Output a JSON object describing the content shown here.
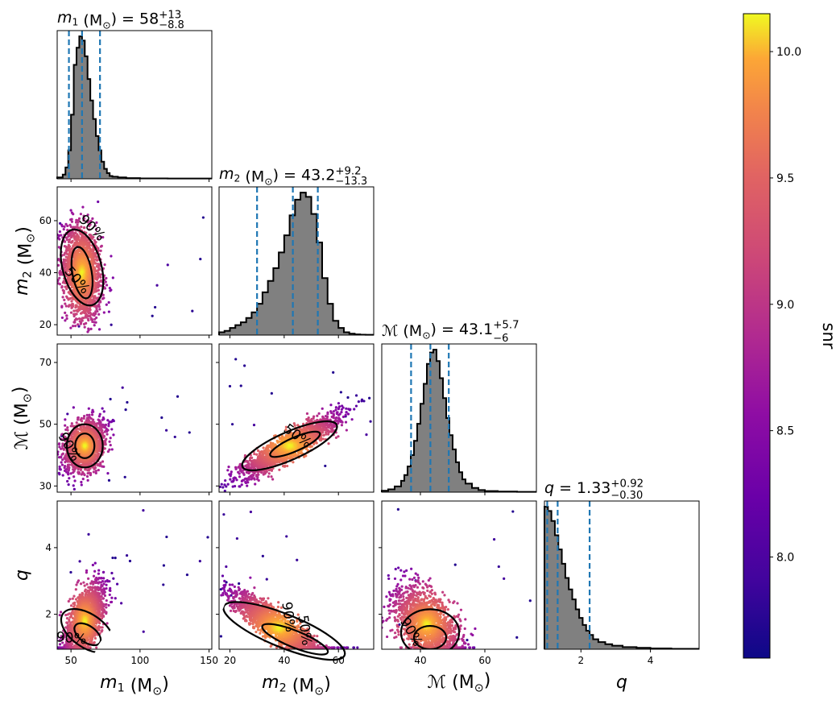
{
  "chart_data": {
    "type": "scatter",
    "subtype": "corner-plot",
    "colorbar": {
      "label": "snr",
      "min": 7.6,
      "max": 10.15,
      "ticks": [
        "8.0",
        "8.5",
        "9.0",
        "9.5",
        "10.0"
      ],
      "colormap": "plasma"
    },
    "parameters": [
      {
        "key": "m1",
        "label": "m",
        "sub": "1",
        "unit": " (M",
        "unit_sub": "⊙",
        "unit_close": ")",
        "title_prefix": " = ",
        "median": "58",
        "plus": "+13",
        "minus": "−8.8",
        "lo": 48.5,
        "med": 58,
        "hi": 71,
        "range": [
          40,
          152
        ],
        "ticks": [
          "50",
          "100",
          "150"
        ]
      },
      {
        "key": "m2",
        "label": "m",
        "sub": "2",
        "unit": " (M",
        "unit_sub": "⊙",
        "unit_close": ")",
        "title_prefix": " = ",
        "median": "43.2",
        "plus": "+9.2",
        "minus": "−13.3",
        "lo": 30,
        "med": 43.2,
        "hi": 52.4,
        "range": [
          16,
          73
        ],
        "ticks": [
          "20",
          "40",
          "60"
        ]
      },
      {
        "key": "mc",
        "label": "ℳ",
        "sub": "",
        "unit": " (M",
        "unit_sub": "⊙",
        "unit_close": ")",
        "title_prefix": " = ",
        "median": "43.1",
        "plus": "+5.7",
        "minus": "−6",
        "lo": 37.1,
        "med": 43.1,
        "hi": 48.8,
        "range": [
          28,
          76
        ],
        "ticks": [
          "40",
          "60"
        ],
        "ylabel_ticks": [
          "30",
          "50",
          "70"
        ]
      },
      {
        "key": "q",
        "label": "q",
        "sub": "",
        "unit": "",
        "unit_sub": "",
        "unit_close": "",
        "title_prefix": " = ",
        "median": "1.33",
        "plus": "+0.92",
        "minus": "−0.30",
        "lo": 1.03,
        "med": 1.33,
        "hi": 2.25,
        "range": [
          0.95,
          5.4
        ],
        "ticks": [
          "2",
          "4"
        ]
      }
    ],
    "ylabel_ticks": {
      "m2": [
        "20",
        "40",
        "60"
      ],
      "mc": [
        "30",
        "50",
        "70"
      ],
      "q": [
        "2",
        "4"
      ]
    },
    "contour_labels": [
      {
        "panel": "m2_m1",
        "labels": [
          "90%",
          "50%"
        ]
      },
      {
        "panel": "mc_m1",
        "labels": [
          "90%"
        ]
      },
      {
        "panel": "mc_m2",
        "labels": [
          "50%"
        ]
      },
      {
        "panel": "q_m1",
        "labels": [
          "90%"
        ]
      },
      {
        "panel": "q_m2",
        "labels": [
          "90%",
          "50%"
        ]
      },
      {
        "panel": "q_mc",
        "labels": [
          "90%"
        ]
      }
    ],
    "histograms": {
      "m1": {
        "x": [
          40,
          44,
          46,
          48,
          50,
          52,
          54,
          56,
          58,
          60,
          62,
          64,
          66,
          68,
          70,
          72,
          74,
          76,
          78,
          80,
          84,
          90,
          100,
          120,
          152
        ],
        "y": [
          0.01,
          0.03,
          0.08,
          0.2,
          0.45,
          0.8,
          0.92,
          1.0,
          0.97,
          0.86,
          0.7,
          0.55,
          0.42,
          0.3,
          0.2,
          0.12,
          0.07,
          0.04,
          0.02,
          0.015,
          0.01,
          0.005,
          0.003,
          0.002,
          0.001
        ]
      },
      "m2": {
        "x": [
          16,
          18,
          20,
          22,
          24,
          26,
          28,
          30,
          32,
          34,
          36,
          38,
          40,
          42,
          44,
          46,
          48,
          50,
          52,
          54,
          56,
          58,
          60,
          62,
          64,
          66,
          68,
          70,
          73
        ],
        "y": [
          0.02,
          0.03,
          0.05,
          0.07,
          0.09,
          0.12,
          0.16,
          0.22,
          0.3,
          0.38,
          0.47,
          0.58,
          0.7,
          0.84,
          0.95,
          1.0,
          0.97,
          0.85,
          0.65,
          0.4,
          0.22,
          0.1,
          0.05,
          0.02,
          0.01,
          0.005,
          0.003,
          0.002,
          0.001
        ]
      },
      "mc": {
        "x": [
          28,
          30,
          32,
          34,
          35,
          36,
          37,
          38,
          39,
          40,
          41,
          42,
          43,
          44,
          45,
          46,
          47,
          48,
          49,
          50,
          51,
          52,
          53,
          54,
          56,
          58,
          60,
          64,
          70,
          76
        ],
        "y": [
          0.01,
          0.02,
          0.04,
          0.08,
          0.12,
          0.18,
          0.26,
          0.36,
          0.48,
          0.62,
          0.76,
          0.9,
          0.98,
          1.0,
          0.92,
          0.8,
          0.66,
          0.52,
          0.4,
          0.3,
          0.21,
          0.14,
          0.09,
          0.06,
          0.03,
          0.015,
          0.008,
          0.004,
          0.002,
          0.001
        ]
      },
      "q": {
        "x": [
          0.95,
          1.05,
          1.15,
          1.25,
          1.35,
          1.45,
          1.55,
          1.65,
          1.75,
          1.85,
          1.95,
          2.05,
          2.15,
          2.25,
          2.35,
          2.5,
          2.7,
          2.9,
          3.2,
          3.6,
          4.0,
          4.6,
          5.4
        ],
        "y": [
          1.0,
          0.97,
          0.9,
          0.8,
          0.7,
          0.6,
          0.5,
          0.42,
          0.35,
          0.28,
          0.22,
          0.17,
          0.13,
          0.1,
          0.07,
          0.05,
          0.035,
          0.025,
          0.015,
          0.01,
          0.006,
          0.003,
          0.001
        ]
      }
    },
    "scatter_samples": [
      {
        "panel": "m2_m1",
        "center": [
          58,
          40
        ],
        "spread": [
          7,
          9
        ],
        "corr": -0.2,
        "n": 1800
      },
      {
        "panel": "mc_m1",
        "center": [
          60,
          43
        ],
        "spread": [
          7,
          4
        ],
        "corr": 0.3,
        "n": 1800
      },
      {
        "panel": "mc_m2",
        "center": [
          42,
          43
        ],
        "spread": [
          9,
          5
        ],
        "corr": 0.9,
        "n": 1800
      },
      {
        "panel": "q_m1",
        "center": [
          60,
          1.8
        ],
        "spread": [
          7,
          0.55
        ],
        "corr": 0.6,
        "n": 1800
      },
      {
        "panel": "q_m2",
        "center": [
          38,
          1.6
        ],
        "spread": [
          9,
          0.55
        ],
        "corr": -0.9,
        "n": 1800
      },
      {
        "panel": "q_mc",
        "center": [
          42,
          1.7
        ],
        "spread": [
          5,
          0.55
        ],
        "corr": -0.5,
        "n": 1800
      }
    ]
  }
}
